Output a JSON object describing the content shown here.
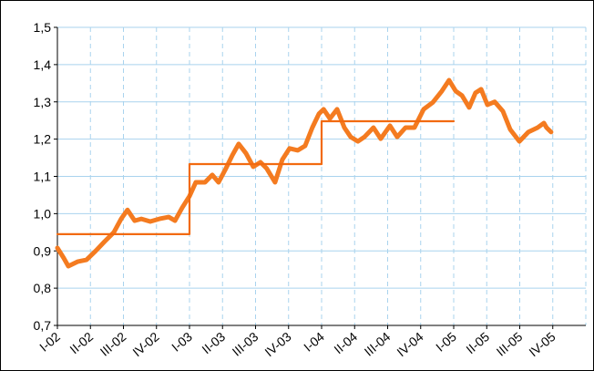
{
  "chart_data": {
    "type": "line",
    "xlim": [
      0,
      16
    ],
    "xticks": [
      {
        "value": 0,
        "label": "I-02"
      },
      {
        "value": 1,
        "label": "II-02"
      },
      {
        "value": 2,
        "label": "III-02"
      },
      {
        "value": 3,
        "label": "IV-02"
      },
      {
        "value": 4,
        "label": "I-03"
      },
      {
        "value": 5,
        "label": "II-03"
      },
      {
        "value": 6,
        "label": "III-03"
      },
      {
        "value": 7,
        "label": "IV-03"
      },
      {
        "value": 8,
        "label": "I-04"
      },
      {
        "value": 9,
        "label": "II-04"
      },
      {
        "value": 10,
        "label": "III-04"
      },
      {
        "value": 11,
        "label": "IV-04"
      },
      {
        "value": 12,
        "label": "I-05"
      },
      {
        "value": 13,
        "label": "II-05"
      },
      {
        "value": 14,
        "label": "III-05"
      },
      {
        "value": 15,
        "label": "IV-05"
      }
    ],
    "ylim": [
      0.7,
      1.5
    ],
    "yticks": [
      {
        "value": 0.7,
        "label": "0,7"
      },
      {
        "value": 0.8,
        "label": "0,8"
      },
      {
        "value": 0.9,
        "label": "0,9"
      },
      {
        "value": 1.0,
        "label": "1,0"
      },
      {
        "value": 1.1,
        "label": "1,1"
      },
      {
        "value": 1.2,
        "label": "1,2"
      },
      {
        "value": 1.3,
        "label": "1,3"
      },
      {
        "value": 1.4,
        "label": "1,4"
      },
      {
        "value": 1.5,
        "label": "1,5"
      }
    ],
    "grid": true,
    "series": [
      {
        "color": "#f47b20",
        "x": [
          0,
          0.19,
          0.33,
          0.61,
          0.88,
          1.16,
          1.43,
          1.71,
          1.93,
          2.12,
          2.34,
          2.54,
          2.81,
          3.09,
          3.37,
          3.56,
          3.78,
          4.0,
          4.19,
          4.47,
          4.69,
          4.88,
          5.1,
          5.3,
          5.49,
          5.71,
          5.93,
          6.15,
          6.34,
          6.59,
          6.81,
          7.03,
          7.28,
          7.5,
          7.72,
          7.92,
          8.06,
          8.25,
          8.47,
          8.69,
          8.88,
          9.1,
          9.3,
          9.57,
          9.79,
          10.07,
          10.29,
          10.54,
          10.81,
          11.09,
          11.37,
          11.64,
          11.86,
          12.06,
          12.25,
          12.47,
          12.66,
          12.83,
          13.02,
          13.24,
          13.49,
          13.71,
          13.99,
          14.26,
          14.54,
          14.73,
          14.81,
          14.95
        ],
        "values": [
          0.908,
          0.881,
          0.859,
          0.871,
          0.876,
          0.9,
          0.925,
          0.95,
          0.986,
          1.01,
          0.981,
          0.986,
          0.979,
          0.986,
          0.991,
          0.981,
          1.016,
          1.047,
          1.084,
          1.084,
          1.104,
          1.084,
          1.121,
          1.157,
          1.187,
          1.162,
          1.126,
          1.138,
          1.121,
          1.084,
          1.145,
          1.175,
          1.17,
          1.182,
          1.231,
          1.268,
          1.28,
          1.255,
          1.28,
          1.231,
          1.206,
          1.194,
          1.206,
          1.231,
          1.201,
          1.236,
          1.206,
          1.231,
          1.231,
          1.28,
          1.299,
          1.329,
          1.358,
          1.329,
          1.317,
          1.285,
          1.324,
          1.334,
          1.292,
          1.3,
          1.275,
          1.226,
          1.194,
          1.219,
          1.231,
          1.243,
          1.231,
          1.219
        ]
      },
      {
        "color": "#f26a10",
        "x": [
          0,
          4,
          4,
          8,
          8,
          12
        ],
        "values": [
          0.945,
          0.945,
          1.133,
          1.133,
          1.248,
          1.248
        ]
      }
    ]
  }
}
